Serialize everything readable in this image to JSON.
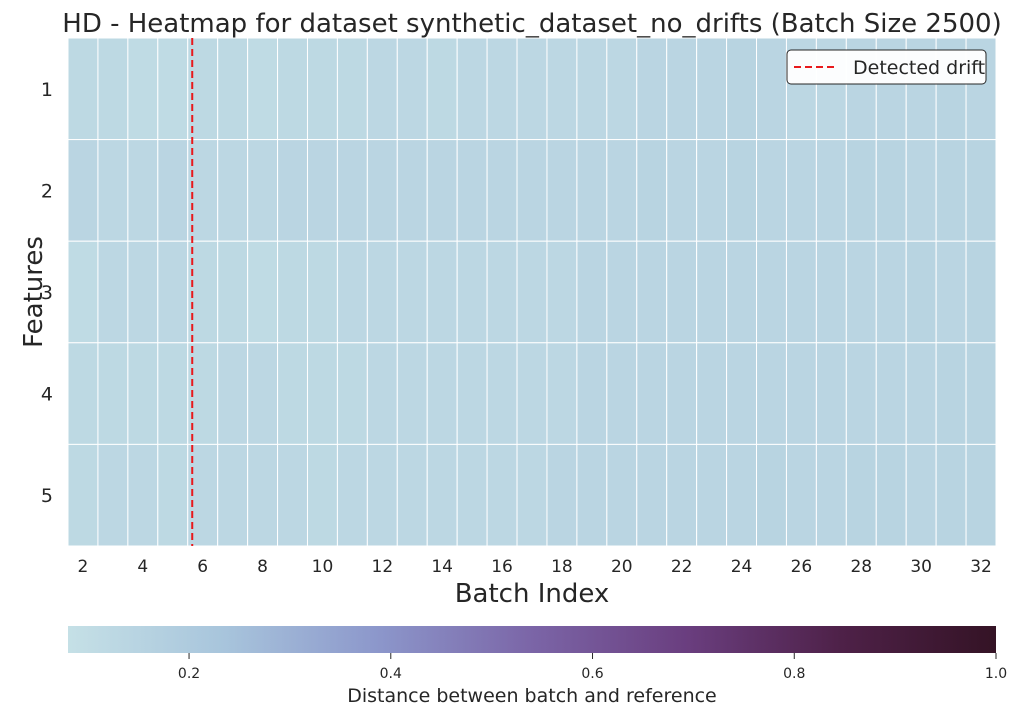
{
  "chart_data": {
    "type": "heatmap",
    "title": "HD - Heatmap for dataset synthetic_dataset_no_drifts (Batch Size 2500)",
    "xlabel": "Batch Index",
    "ylabel": "Features",
    "x_categories": [
      2,
      3,
      4,
      5,
      6,
      7,
      8,
      9,
      10,
      11,
      12,
      13,
      14,
      15,
      16,
      17,
      18,
      19,
      20,
      21,
      22,
      23,
      24,
      25,
      26,
      27,
      28,
      29,
      30,
      31,
      32
    ],
    "x_tick_labels": [
      "2",
      "4",
      "6",
      "8",
      "10",
      "12",
      "14",
      "16",
      "18",
      "20",
      "22",
      "24",
      "26",
      "28",
      "30",
      "32"
    ],
    "y_categories": [
      "1",
      "2",
      "3",
      "4",
      "5"
    ],
    "values": [
      [
        0.12,
        0.12,
        0.11,
        0.11,
        0.12,
        0.12,
        0.11,
        0.12,
        0.12,
        0.12,
        0.13,
        0.13,
        0.12,
        0.13,
        0.13,
        0.13,
        0.13,
        0.13,
        0.13,
        0.14,
        0.14,
        0.14,
        0.15,
        0.14,
        0.13,
        0.13,
        0.14,
        0.14,
        0.14,
        0.15,
        0.14
      ],
      [
        0.14,
        0.13,
        0.13,
        0.14,
        0.13,
        0.13,
        0.13,
        0.14,
        0.14,
        0.14,
        0.14,
        0.14,
        0.14,
        0.14,
        0.14,
        0.14,
        0.14,
        0.14,
        0.14,
        0.15,
        0.14,
        0.14,
        0.15,
        0.14,
        0.14,
        0.14,
        0.15,
        0.15,
        0.14,
        0.15,
        0.15
      ],
      [
        0.11,
        0.13,
        0.13,
        0.13,
        0.12,
        0.12,
        0.11,
        0.12,
        0.12,
        0.13,
        0.13,
        0.13,
        0.13,
        0.13,
        0.13,
        0.13,
        0.13,
        0.14,
        0.14,
        0.14,
        0.14,
        0.14,
        0.14,
        0.14,
        0.14,
        0.14,
        0.14,
        0.14,
        0.15,
        0.14,
        0.15
      ],
      [
        0.12,
        0.12,
        0.12,
        0.12,
        0.12,
        0.13,
        0.13,
        0.12,
        0.12,
        0.12,
        0.13,
        0.13,
        0.13,
        0.13,
        0.13,
        0.13,
        0.13,
        0.14,
        0.14,
        0.14,
        0.14,
        0.14,
        0.14,
        0.14,
        0.14,
        0.14,
        0.14,
        0.14,
        0.14,
        0.15,
        0.15
      ],
      [
        0.12,
        0.13,
        0.13,
        0.12,
        0.13,
        0.13,
        0.13,
        0.13,
        0.12,
        0.13,
        0.13,
        0.13,
        0.13,
        0.13,
        0.13,
        0.13,
        0.14,
        0.14,
        0.14,
        0.14,
        0.14,
        0.14,
        0.14,
        0.15,
        0.14,
        0.14,
        0.15,
        0.15,
        0.14,
        0.15,
        0.15
      ]
    ],
    "drift_x": 5.65,
    "drift_color": "#e8191c",
    "legend": {
      "label": "Detected drift",
      "position": "top-right"
    },
    "colorbar": {
      "label": "Distance between batch and reference",
      "min": 0.08,
      "max": 1.0,
      "ticks": [
        0.2,
        0.4,
        0.6,
        0.8,
        1.0
      ],
      "tick_labels": [
        "0.2",
        "0.4",
        "0.6",
        "0.8",
        "1.0"
      ],
      "colors": [
        "#c5e0e6",
        "#a8c5dc",
        "#8c97cb",
        "#7b65a7",
        "#6a3e7f",
        "#4e2148",
        "#341325"
      ]
    },
    "grid": true
  }
}
